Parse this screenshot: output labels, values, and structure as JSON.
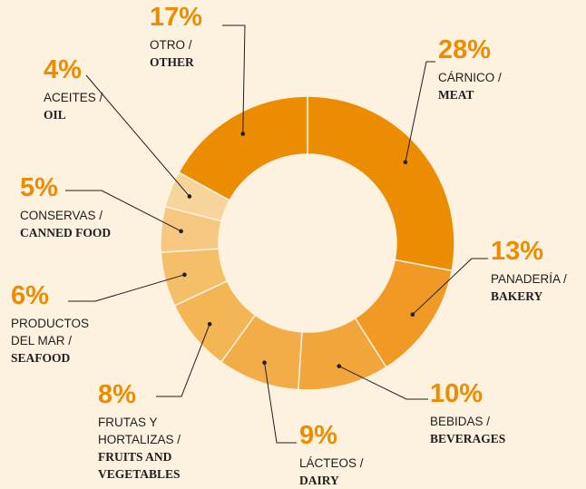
{
  "chart_data": {
    "type": "donut",
    "categories": [
      "CÁRNICO /",
      "PANADERÍA /",
      "BEBIDAS /",
      "LÁCTEOS /",
      "FRUTAS Y HORTALIZAS /",
      "PRODUCTOS DEL MAR /",
      "CONSERVAS /",
      "ACEITES /",
      "OTRO /"
    ],
    "categories_en": [
      "MEAT",
      "BAKERY",
      "BEVERAGES",
      "DAIRY",
      "FRUITS AND VEGETABLES",
      "SEAFOOD",
      "CANNED FOOD",
      "OIL",
      "OTHER"
    ],
    "values": [
      28,
      13,
      10,
      9,
      8,
      6,
      5,
      4,
      17
    ],
    "value_labels": [
      "28%",
      "13%",
      "10%",
      "9%",
      "8%",
      "6%",
      "5%",
      "4%",
      "17%"
    ],
    "colors": [
      "#ec8c00",
      "#f09a25",
      "#f2a53a",
      "#f3ad48",
      "#f4b554",
      "#f5bf6a",
      "#f6c780",
      "#f8d49d",
      "#ec8c00"
    ]
  }
}
